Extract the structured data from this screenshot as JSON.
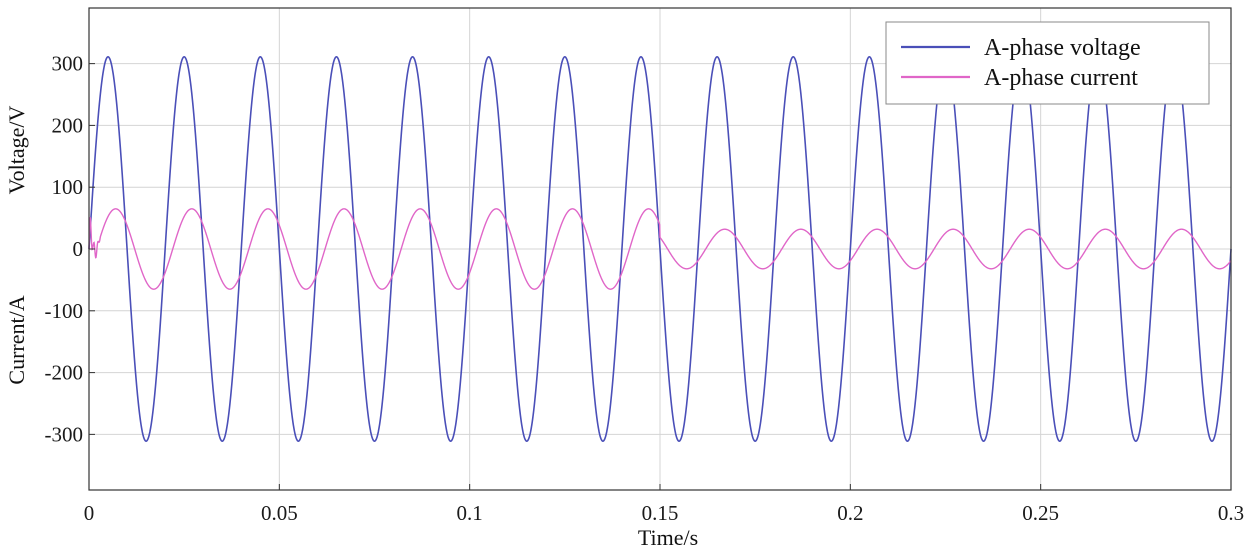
{
  "chart_data": {
    "type": "line",
    "title": "",
    "xlabel": "Time/s",
    "ylabel_top": "Voltage/V",
    "ylabel_bottom": "Current/A",
    "xlim": [
      0,
      0.3
    ],
    "ylim": [
      -390,
      390
    ],
    "x_ticks": [
      0,
      0.05,
      0.1,
      0.15,
      0.2,
      0.25,
      0.3
    ],
    "x_tick_labels": [
      "0",
      "0.05",
      "0.1",
      "0.15",
      "0.2",
      "0.25",
      "0.3"
    ],
    "y_ticks": [
      300,
      200,
      100,
      0,
      -100,
      -200,
      -300
    ],
    "y_tick_labels": [
      "300",
      "200",
      "100",
      "0",
      "-100",
      "-200",
      "-300"
    ],
    "grid": true,
    "legend_position": "top-right",
    "series": [
      {
        "name": "A-phase voltage",
        "color": "#4a4fb8",
        "frequency_hz": 50,
        "amplitude": 311,
        "phase": "sine, starts at 0"
      },
      {
        "name": "A-phase current",
        "color": "#e066c8",
        "frequency_hz": 50,
        "segments": [
          {
            "t_start": 0,
            "t_end": 0.15,
            "amplitude": 65
          },
          {
            "t_start": 0.15,
            "t_end": 0.3,
            "amplitude": 32
          }
        ],
        "phase_lag_deg": 36,
        "startup_transient": "small spike near 0 up to about 45"
      }
    ]
  }
}
